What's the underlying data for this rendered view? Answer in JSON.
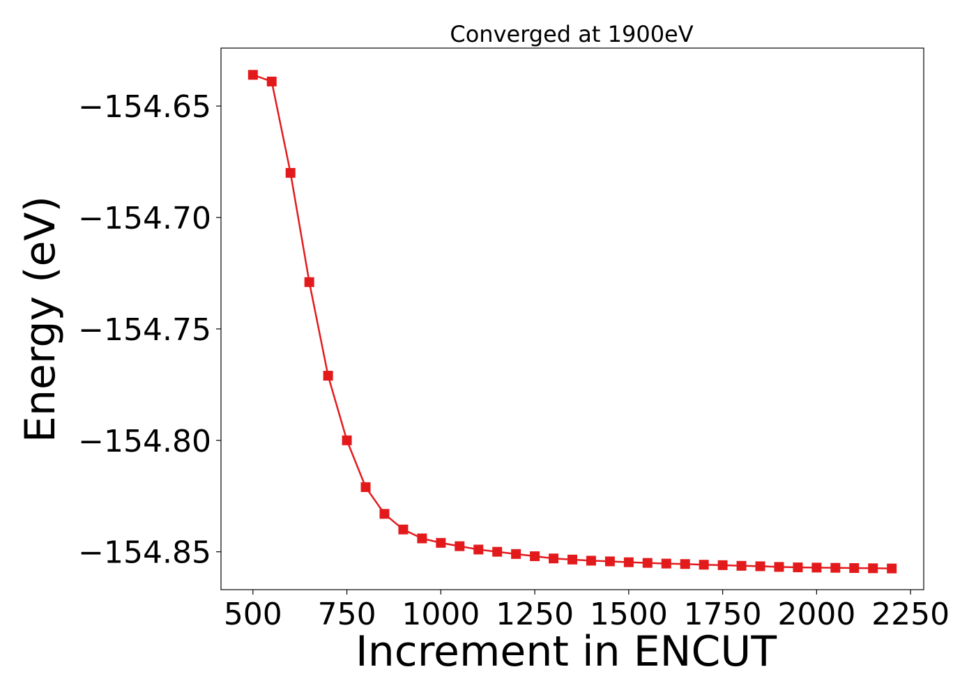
{
  "chart_data": {
    "type": "line",
    "title": "Converged at 1900eV",
    "xlabel": "Increment in ENCUT",
    "ylabel": "Energy (eV)",
    "xlim": [
      415,
      2285
    ],
    "ylim": [
      -154.867,
      -154.624
    ],
    "xticks": [
      500,
      750,
      1000,
      1250,
      1500,
      1750,
      2000,
      2250
    ],
    "xtick_labels": [
      "500",
      "750",
      "1000",
      "1250",
      "1500",
      "1750",
      "2000",
      "2250"
    ],
    "yticks": [
      -154.65,
      -154.7,
      -154.75,
      -154.8,
      -154.85
    ],
    "ytick_labels": [
      "−154.65",
      "−154.70",
      "−154.75",
      "−154.80",
      "−154.85"
    ],
    "grid": false,
    "marker": "square",
    "colors": {
      "series": "#e31a1c",
      "axes": "#000000",
      "background": "#ffffff"
    },
    "series": [
      {
        "x": [
          500,
          550,
          600,
          650,
          700,
          750,
          800,
          850,
          900,
          950,
          1000,
          1050,
          1100,
          1150,
          1200,
          1250,
          1300,
          1350,
          1400,
          1450,
          1500,
          1550,
          1600,
          1650,
          1700,
          1750,
          1800,
          1850,
          1900,
          1950,
          2000,
          2050,
          2100,
          2150,
          2200
        ],
        "values": [
          -154.636,
          -154.639,
          -154.68,
          -154.729,
          -154.771,
          -154.8,
          -154.821,
          -154.833,
          -154.84,
          -154.844,
          -154.846,
          -154.8475,
          -154.849,
          -154.85,
          -154.851,
          -154.852,
          -154.853,
          -154.8535,
          -154.854,
          -154.8543,
          -154.8547,
          -154.855,
          -154.8553,
          -154.8555,
          -154.8558,
          -154.856,
          -154.8563,
          -154.8565,
          -154.8568,
          -154.857,
          -154.8571,
          -154.8572,
          -154.8573,
          -154.8574,
          -154.8575
        ]
      }
    ]
  }
}
